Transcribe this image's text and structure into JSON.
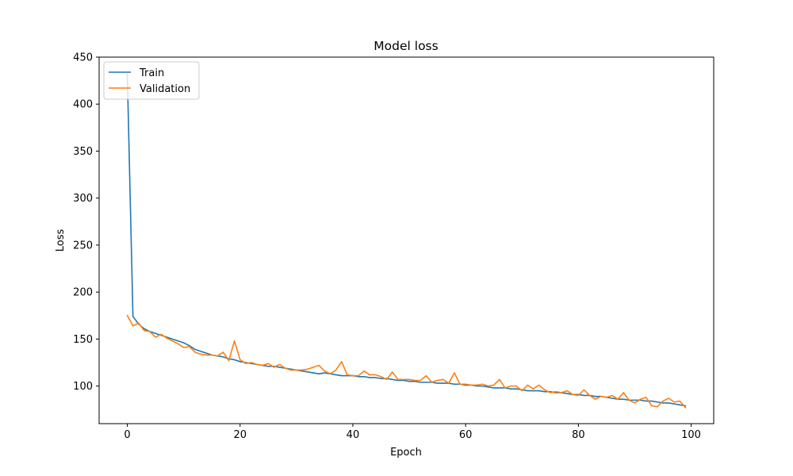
{
  "chart_data": {
    "type": "line",
    "title": "Model loss",
    "xlabel": "Epoch",
    "ylabel": "Loss",
    "xlim": [
      -5,
      104
    ],
    "ylim": [
      60,
      450
    ],
    "xticks": [
      0,
      20,
      40,
      60,
      80,
      100
    ],
    "yticks": [
      100,
      150,
      200,
      250,
      300,
      350,
      400,
      450
    ],
    "grid": false,
    "legend_position": "upper left",
    "series": [
      {
        "name": "Train",
        "color": "#1f77b4",
        "x": [
          0,
          1,
          2,
          3,
          4,
          5,
          6,
          7,
          8,
          9,
          10,
          11,
          12,
          13,
          14,
          15,
          16,
          17,
          18,
          19,
          20,
          21,
          22,
          23,
          24,
          25,
          26,
          27,
          28,
          29,
          30,
          31,
          32,
          33,
          34,
          35,
          36,
          37,
          38,
          39,
          40,
          41,
          42,
          43,
          44,
          45,
          46,
          47,
          48,
          49,
          50,
          51,
          52,
          53,
          54,
          55,
          56,
          57,
          58,
          59,
          60,
          61,
          62,
          63,
          64,
          65,
          66,
          67,
          68,
          69,
          70,
          71,
          72,
          73,
          74,
          75,
          76,
          77,
          78,
          79,
          80,
          81,
          82,
          83,
          84,
          85,
          86,
          87,
          88,
          89,
          90,
          91,
          92,
          93,
          94,
          95,
          96,
          97,
          98,
          99
        ],
        "values": [
          432,
          174,
          166,
          161,
          158,
          156,
          154,
          152,
          150,
          148,
          146,
          143,
          139,
          137,
          135,
          133,
          132,
          131,
          129,
          128,
          126,
          125,
          124,
          123,
          122,
          121,
          121,
          120,
          119,
          118,
          117,
          116,
          115,
          114,
          113,
          114,
          113,
          112,
          111,
          111,
          111,
          110,
          110,
          109,
          109,
          108,
          108,
          107,
          106,
          106,
          105,
          105,
          104,
          104,
          104,
          103,
          103,
          103,
          102,
          102,
          101,
          101,
          100,
          100,
          99,
          98,
          98,
          98,
          97,
          97,
          96,
          95,
          95,
          95,
          94,
          94,
          93,
          93,
          92,
          91,
          91,
          90,
          90,
          89,
          89,
          88,
          87,
          86,
          86,
          85,
          85,
          85,
          84,
          84,
          83,
          82,
          82,
          81,
          80,
          79
        ]
      },
      {
        "name": "Validation",
        "color": "#ff7f0e",
        "x": [
          0,
          1,
          2,
          3,
          4,
          5,
          6,
          7,
          8,
          9,
          10,
          11,
          12,
          13,
          14,
          15,
          16,
          17,
          18,
          19,
          20,
          21,
          22,
          23,
          24,
          25,
          26,
          27,
          28,
          29,
          30,
          31,
          32,
          33,
          34,
          35,
          36,
          37,
          38,
          39,
          40,
          41,
          42,
          43,
          44,
          45,
          46,
          47,
          48,
          49,
          50,
          51,
          52,
          53,
          54,
          55,
          56,
          57,
          58,
          59,
          60,
          61,
          62,
          63,
          64,
          65,
          66,
          67,
          68,
          69,
          70,
          71,
          72,
          73,
          74,
          75,
          76,
          77,
          78,
          79,
          80,
          81,
          82,
          83,
          84,
          85,
          86,
          87,
          88,
          89,
          90,
          91,
          92,
          93,
          94,
          95,
          96,
          97,
          98,
          99
        ],
        "values": [
          175,
          164,
          167,
          159,
          158,
          152,
          155,
          151,
          148,
          145,
          141,
          142,
          136,
          134,
          133,
          133,
          132,
          136,
          127,
          148,
          128,
          124,
          125,
          123,
          122,
          124,
          120,
          123,
          119,
          117,
          117,
          117,
          118,
          120,
          122,
          116,
          113,
          117,
          126,
          112,
          111,
          111,
          116,
          112,
          112,
          110,
          107,
          115,
          107,
          107,
          107,
          106,
          106,
          111,
          104,
          106,
          107,
          103,
          114,
          102,
          102,
          101,
          101,
          102,
          100,
          101,
          107,
          98,
          100,
          100,
          95,
          101,
          97,
          101,
          96,
          93,
          94,
          93,
          95,
          91,
          90,
          96,
          90,
          86,
          89,
          88,
          90,
          86,
          93,
          85,
          82,
          86,
          88,
          79,
          78,
          84,
          87,
          83,
          84,
          77
        ]
      }
    ]
  }
}
